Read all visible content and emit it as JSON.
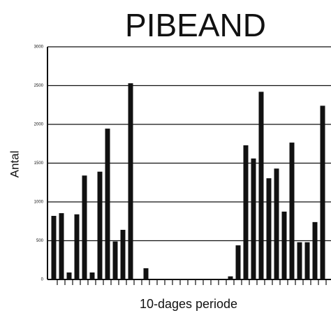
{
  "chart_data": {
    "type": "bar",
    "title": "PIBEAND",
    "y_label": "Antal",
    "x_label": "10-dages periode",
    "categories": [
      null,
      null,
      null,
      null,
      null,
      null,
      null,
      null,
      null,
      null,
      null,
      null,
      null,
      null,
      null,
      null,
      null,
      null,
      null,
      null,
      null,
      null,
      null,
      null,
      null,
      null,
      null,
      null,
      null,
      null,
      null,
      null,
      null,
      null,
      null,
      null
    ],
    "values": [
      820,
      855,
      90,
      840,
      1340,
      90,
      1390,
      1945,
      490,
      640,
      2530,
      0,
      145,
      0,
      0,
      0,
      0,
      0,
      0,
      0,
      0,
      0,
      0,
      40,
      440,
      1730,
      1560,
      2420,
      1305,
      1430,
      875,
      1765,
      480,
      480,
      740,
      2240
    ],
    "color": "#111111",
    "ylim": [
      0,
      3000
    ],
    "yticks": [
      0,
      500,
      1000,
      1500,
      2000,
      2500,
      3000
    ],
    "grid": true
  }
}
